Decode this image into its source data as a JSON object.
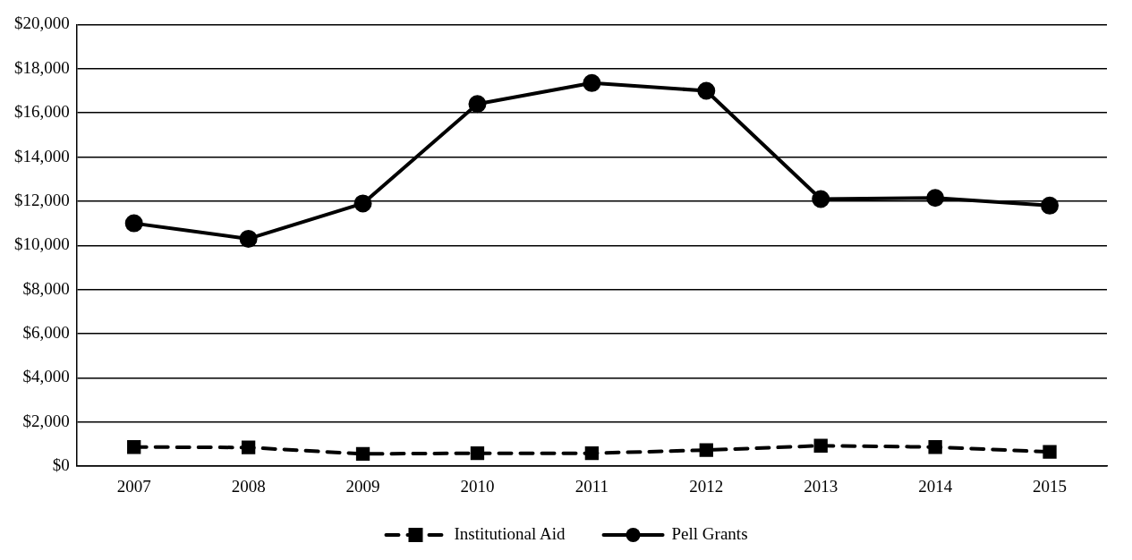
{
  "chart_data": {
    "type": "line",
    "categories": [
      "2007",
      "2008",
      "2009",
      "2010",
      "2011",
      "2012",
      "2013",
      "2014",
      "2015"
    ],
    "series": [
      {
        "name": "Institutional Aid",
        "color": "#000000",
        "values": [
          870,
          850,
          560,
          590,
          590,
          730,
          930,
          870,
          650
        ],
        "marker": "square",
        "line_style": "dashed"
      },
      {
        "name": "Pell Grants",
        "color": "#000000",
        "values": [
          11000,
          10300,
          11900,
          16400,
          17350,
          17000,
          12100,
          12150,
          11800
        ],
        "marker": "circle",
        "line_style": "solid"
      }
    ],
    "ylim": [
      0,
      20000
    ],
    "yticks": [
      {
        "value": 0,
        "label": "$0"
      },
      {
        "value": 2000,
        "label": "$2,000"
      },
      {
        "value": 4000,
        "label": "$4,000"
      },
      {
        "value": 6000,
        "label": "$6,000"
      },
      {
        "value": 8000,
        "label": "$8,000"
      },
      {
        "value": 10000,
        "label": "$10,000"
      },
      {
        "value": 12000,
        "label": "$12,000"
      },
      {
        "value": 14000,
        "label": "$14,000"
      },
      {
        "value": 16000,
        "label": "$16,000"
      },
      {
        "value": 18000,
        "label": "$18,000"
      },
      {
        "value": 20000,
        "label": "$20,000"
      }
    ],
    "grid": "y",
    "legend": "bottom"
  }
}
